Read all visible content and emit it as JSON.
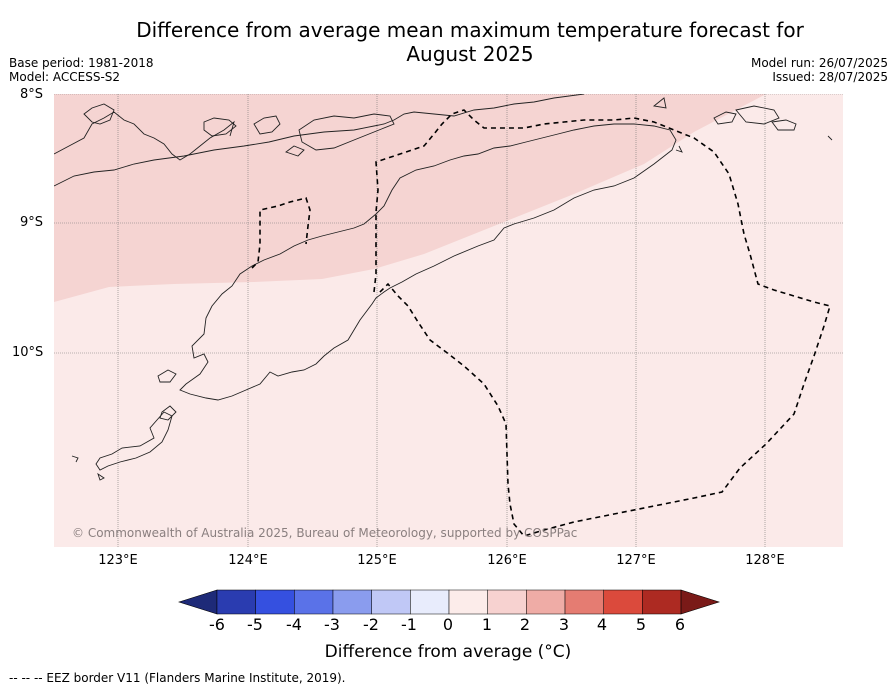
{
  "title_line1": "Difference from average mean maximum temperature forecast for",
  "title_line2": "August 2025",
  "base_period": "Base period: 1981-2018",
  "model": "Model: ACCESS-S2",
  "model_run": "Model run: 26/07/2025",
  "issued": "Issued: 28/07/2025",
  "lat_labels": [
    "8°S",
    "9°S",
    "10°S"
  ],
  "lon_labels": [
    "123°E",
    "124°E",
    "125°E",
    "126°E",
    "127°E",
    "128°E"
  ],
  "copyright": "© Commonwealth of Australia 2025, Bureau of Meteorology, supported by COSPPac",
  "colorbar": {
    "label": "Difference from average (°C)",
    "ticks": [
      "-6",
      "-5",
      "-4",
      "-3",
      "-2",
      "-1",
      "0",
      "1",
      "2",
      "3",
      "4",
      "5",
      "6"
    ],
    "colors": [
      "#1e2a78",
      "#2a3cb0",
      "#3550e0",
      "#5a72e8",
      "#8a9cee",
      "#c0c8f6",
      "#e8ecfc",
      "#fcecea",
      "#f7d2d0",
      "#efaca6",
      "#e57c72",
      "#db4a3c",
      "#ad2a22",
      "#7a1a18"
    ]
  },
  "legend_note": "--  --  -- EEZ border V11 (Flanders Marine Institute, 2019).",
  "map_colors": {
    "band_1_to_2": "#f5d4d2",
    "band_0_to_1": "#fbeae9"
  }
}
